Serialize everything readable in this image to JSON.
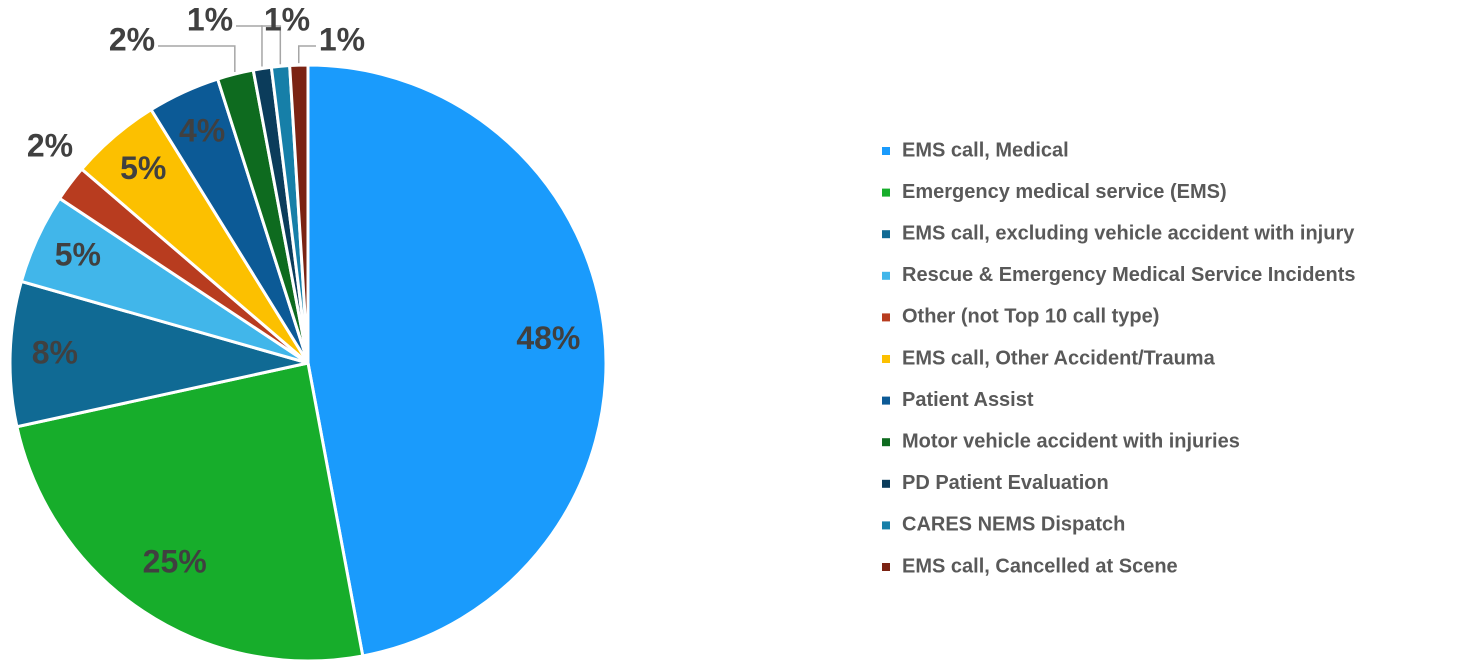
{
  "chart_data": {
    "type": "pie",
    "categories": [
      "EMS call, Medical",
      "Emergency medical service (EMS)",
      "EMS call, excluding vehicle accident with injury",
      "Rescue & Emergency Medical Service Incidents",
      "Other (not Top 10 call type)",
      "EMS call, Other Accident/Trauma",
      "Patient Assist",
      "Motor vehicle accident with injuries",
      "PD Patient Evaluation",
      "CARES NEMS Dispatch",
      "EMS call, Cancelled at Scene"
    ],
    "values": [
      48,
      25,
      8,
      5,
      2,
      5,
      4,
      2,
      1,
      1,
      1
    ],
    "value_labels": [
      "48%",
      "25%",
      "8%",
      "5%",
      "2%",
      "5%",
      "4%",
      "2%",
      "1%",
      "1%",
      "1%"
    ],
    "colors": [
      "#1a9bfc",
      "#17ad2b",
      "#106a94",
      "#41b6ea",
      "#b83c1f",
      "#fcc000",
      "#0c5a96",
      "#0e6b1f",
      "#0b3c5b",
      "#167fa8",
      "#7b2313"
    ],
    "legend": "right"
  }
}
